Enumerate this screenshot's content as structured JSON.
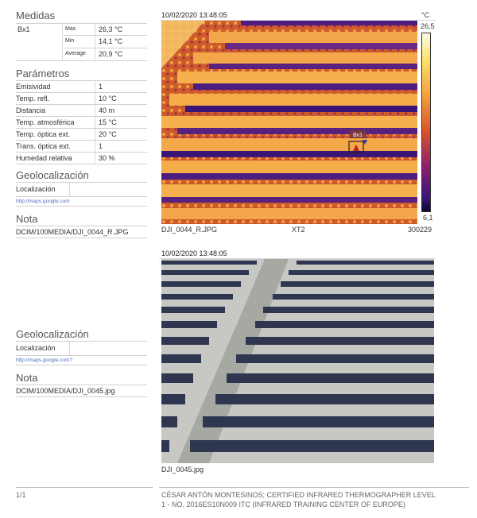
{
  "left": {
    "medidas_title": "Medidas",
    "box": "Bx1",
    "stats": [
      {
        "label": "Max",
        "value": "26,3 °C"
      },
      {
        "label": "Min",
        "value": "14,1 °C"
      },
      {
        "label": "Average",
        "value": "20,9 °C"
      }
    ],
    "parametros_title": "Parámetros",
    "params": [
      {
        "label": "Emisividad",
        "value": "1"
      },
      {
        "label": "Temp. refl.",
        "value": "10 °C"
      },
      {
        "label": "Distancia",
        "value": "40 m"
      },
      {
        "label": "Temp. atmosférica",
        "value": "15 °C"
      },
      {
        "label": "Temp. óptica ext.",
        "value": "20 °C"
      },
      {
        "label": "Trans. óptica ext.",
        "value": "1"
      },
      {
        "label": "Humedad relativa",
        "value": "30 %"
      }
    ],
    "geo1_title": "Geolocalización",
    "geo1_label": "Localización",
    "geo1_link": "http://maps.google.com",
    "nota1_title": "Nota",
    "nota1_text": "DCIM/100MEDIA/DJI_0044_R.JPG",
    "geo2_title": "Geolocalización",
    "geo2_label": "Localización",
    "geo2_link": "http://maps.google.com?",
    "nota2_title": "Nota",
    "nota2_text": "DCIM/100MEDIA/DJI_0045.jpg"
  },
  "thermal": {
    "timestamp": "10/02/2020 13:48:05",
    "unit": "°C",
    "scale_max": "26,5",
    "scale_min": "6,1",
    "box_label": "Bx1",
    "filename": "DJI_0044_R.JPG",
    "camera": "XT2",
    "serial": "300229"
  },
  "visual": {
    "timestamp": "10/02/2020 13:48:05",
    "filename": "DJI_0045.jpg"
  },
  "footer": {
    "page": "1/1",
    "credit_line1": "CÉSAR ANTÓN MONTESINOS; CERTIFIED INFRARED THERMOGRAPHER LEVEL",
    "credit_line2": "1 - NO. 2016ES10N009 ITC (INFRARED TRAINING CENTER OF EUROPE)"
  },
  "colors": {
    "ir_hot": "#f6b63a",
    "ir_mid": "#e0782a",
    "ir_cold": "#3a1678",
    "panel_dark": "#333a52",
    "ground": "#cfd0cc"
  }
}
